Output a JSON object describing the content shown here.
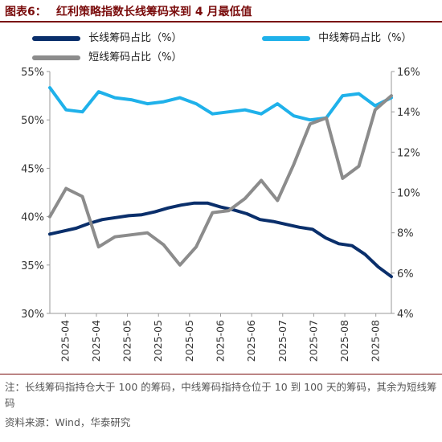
{
  "figure": {
    "prefix": "图表6：",
    "title": "红利策略指数长线筹码来到 4 月最低值"
  },
  "footnote": "注：长线筹码指持仓大于 100 的筹码，中线筹码指持仓位于 10 到 100 天的筹码，其余为短线筹码",
  "source": "资料来源：Wind，华泰研究",
  "colors": {
    "long": "#0a2f6b",
    "mid": "#1fb1ea",
    "short": "#8c8c8c",
    "title": "#7a0c0c"
  },
  "chart_data": {
    "type": "line",
    "x_tick_labels": [
      "2025-04",
      "2025-04",
      "2025-05",
      "2025-05",
      "2025-05",
      "2025-06",
      "2025-06",
      "2025-07",
      "2025-07",
      "2025-08",
      "2025-08"
    ],
    "left_axis": {
      "ylim": [
        30,
        55
      ],
      "ticks": [
        "30%",
        "35%",
        "40%",
        "45%",
        "50%",
        "55%"
      ]
    },
    "right_axis": {
      "ylim": [
        4,
        16
      ],
      "ticks": [
        "4%",
        "6%",
        "8%",
        "10%",
        "12%",
        "14%",
        "16%"
      ]
    },
    "series": [
      {
        "name": "长线筹码占比（%）",
        "axis": "left",
        "values": [
          38.2,
          38.5,
          38.8,
          39.3,
          39.7,
          39.9,
          40.1,
          40.2,
          40.5,
          40.9,
          41.2,
          41.4,
          41.4,
          41.0,
          40.7,
          40.3,
          39.7,
          39.5,
          39.2,
          38.9,
          38.7,
          37.8,
          37.2,
          37.0,
          36.1,
          34.8,
          33.8
        ]
      },
      {
        "name": "中线筹码占比（%）",
        "axis": "right",
        "values": [
          15.2,
          14.1,
          14.0,
          15.0,
          14.7,
          14.6,
          14.4,
          14.5,
          14.7,
          14.4,
          13.9,
          14.0,
          14.1,
          13.9,
          14.4,
          13.8,
          13.6,
          13.7,
          14.8,
          14.9,
          14.3,
          14.7
        ]
      },
      {
        "name": "短线筹码占比（%）",
        "axis": "right",
        "values": [
          8.8,
          10.2,
          9.8,
          7.3,
          7.8,
          7.9,
          8.0,
          7.4,
          6.4,
          7.3,
          9.0,
          9.1,
          9.7,
          10.6,
          9.6,
          11.4,
          13.4,
          13.7,
          10.7,
          11.3,
          14.1,
          14.8
        ]
      }
    ],
    "grid": false,
    "legend_placement": "top"
  }
}
